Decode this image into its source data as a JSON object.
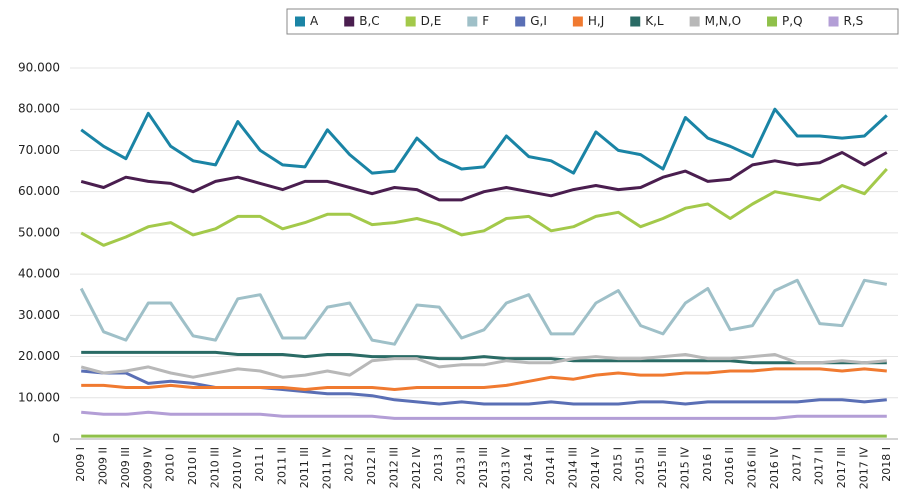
{
  "chart_data": {
    "type": "line",
    "categories": [
      "2009 I",
      "2009 II",
      "2009 III",
      "2009 IV",
      "2010 I",
      "2010 II",
      "2010 III",
      "2010 IV",
      "2011 I",
      "2011 II",
      "2011 III",
      "2011 IV",
      "2012 I",
      "2012 II",
      "2012 III",
      "2012 IV",
      "2013 I",
      "2013 II",
      "2013 III",
      "2013 IV",
      "2014 I",
      "2014 II",
      "2014 III",
      "2014 IV",
      "2015 I",
      "2015 II",
      "2015 III",
      "2015 IV",
      "2016 I",
      "2016 II",
      "2016 III",
      "2016 IV",
      "2017 I",
      "2017 II",
      "2017 III",
      "2017 IV",
      "2018 I"
    ],
    "ylim": [
      0,
      90000
    ],
    "yticks": [
      0,
      {
        "value": 10000,
        "label": "10.000"
      },
      {
        "value": 20000,
        "label": "20.000"
      },
      {
        "value": 30000,
        "label": "30.000"
      },
      {
        "value": 40000,
        "label": "40.000"
      },
      {
        "value": 50000,
        "label": "50.000"
      },
      {
        "value": 60000,
        "label": "60.000"
      },
      {
        "value": 70000,
        "label": "70.000"
      },
      {
        "value": 80000,
        "label": "80.000"
      },
      {
        "value": 90000,
        "label": "90.000"
      }
    ],
    "grid": true,
    "legend": "top-right",
    "series": [
      {
        "name": "A",
        "color": "#1a84a5",
        "values": [
          75000,
          71000,
          68000,
          79000,
          71000,
          67500,
          66500,
          77000,
          70000,
          66500,
          66000,
          75000,
          69000,
          64500,
          65000,
          73000,
          68000,
          65500,
          66000,
          73500,
          68500,
          67500,
          64500,
          74500,
          70000,
          69000,
          65500,
          78000,
          73000,
          71000,
          68500,
          80000,
          73500,
          73500,
          73000,
          73500,
          78500
        ]
      },
      {
        "name": "B,C",
        "color": "#4a1e4f",
        "values": [
          62500,
          61000,
          63500,
          62500,
          62000,
          60000,
          62500,
          63500,
          62000,
          60500,
          62500,
          62500,
          61000,
          59500,
          61000,
          60500,
          58000,
          58000,
          60000,
          61000,
          60000,
          59000,
          60500,
          61500,
          60500,
          61000,
          63500,
          65000,
          62500,
          63000,
          66500,
          67500,
          66500,
          67000,
          69500,
          66500,
          69500
        ]
      },
      {
        "name": "D,E",
        "color": "#a3c94a",
        "values": [
          50000,
          47000,
          49000,
          51500,
          52500,
          49500,
          51000,
          54000,
          54000,
          51000,
          52500,
          54500,
          54500,
          52000,
          52500,
          53500,
          52000,
          49500,
          50500,
          53500,
          54000,
          50500,
          51500,
          54000,
          55000,
          51500,
          53500,
          56000,
          57000,
          53500,
          57000,
          60000,
          59000,
          58000,
          61500,
          59500,
          65500
        ]
      },
      {
        "name": "F",
        "color": "#9fc0c8",
        "values": [
          36500,
          26000,
          24000,
          33000,
          33000,
          25000,
          24000,
          34000,
          35000,
          24500,
          24500,
          32000,
          33000,
          24000,
          23000,
          32500,
          32000,
          24500,
          26500,
          33000,
          35000,
          25500,
          25500,
          33000,
          36000,
          27500,
          25500,
          33000,
          36500,
          26500,
          27500,
          36000,
          38500,
          28000,
          27500,
          38500,
          37500
        ]
      },
      {
        "name": "G,I",
        "color": "#5a6fb5",
        "values": [
          16500,
          16000,
          16000,
          13500,
          14000,
          13500,
          12500,
          12500,
          12500,
          12000,
          11500,
          11000,
          11000,
          10500,
          9500,
          9000,
          8500,
          9000,
          8500,
          8500,
          8500,
          9000,
          8500,
          8500,
          8500,
          9000,
          9000,
          8500,
          9000,
          9000,
          9000,
          9000,
          9000,
          9500,
          9500,
          9000,
          9500
        ]
      },
      {
        "name": "H,J",
        "color": "#f07a30",
        "values": [
          13000,
          13000,
          12500,
          12500,
          13000,
          12500,
          12500,
          12500,
          12500,
          12500,
          12000,
          12500,
          12500,
          12500,
          12000,
          12500,
          12500,
          12500,
          12500,
          13000,
          14000,
          15000,
          14500,
          15500,
          16000,
          15500,
          15500,
          16000,
          16000,
          16500,
          16500,
          17000,
          17000,
          17000,
          16500,
          17000,
          16500
        ]
      },
      {
        "name": "K,L",
        "color": "#2a6b65",
        "values": [
          21000,
          21000,
          21000,
          21000,
          21000,
          21000,
          21000,
          20500,
          20500,
          20500,
          20000,
          20500,
          20500,
          20000,
          20000,
          20000,
          19500,
          19500,
          20000,
          19500,
          19500,
          19500,
          19000,
          19000,
          19000,
          19000,
          19000,
          19000,
          19000,
          19000,
          18500,
          18500,
          18500,
          18500,
          18500,
          18500,
          18500
        ]
      },
      {
        "name": "M,N,O",
        "color": "#b8b8b8",
        "values": [
          17500,
          16000,
          16500,
          17500,
          16000,
          15000,
          16000,
          17000,
          16500,
          15000,
          15500,
          16500,
          15500,
          19000,
          19500,
          19500,
          17500,
          18000,
          18000,
          19000,
          18500,
          18500,
          19500,
          20000,
          19500,
          19500,
          20000,
          20500,
          19500,
          19500,
          20000,
          20500,
          18500,
          18500,
          19000,
          18500,
          19000
        ]
      },
      {
        "name": "P,Q",
        "color": "#8fc04a",
        "values": [
          700,
          700,
          700,
          700,
          700,
          700,
          700,
          700,
          700,
          700,
          700,
          700,
          700,
          700,
          700,
          700,
          700,
          700,
          700,
          700,
          700,
          700,
          700,
          700,
          700,
          700,
          700,
          700,
          700,
          700,
          700,
          700,
          700,
          700,
          700,
          700,
          700
        ]
      },
      {
        "name": "R,S",
        "color": "#b39ed6",
        "values": [
          6500,
          6000,
          6000,
          6500,
          6000,
          6000,
          6000,
          6000,
          6000,
          5500,
          5500,
          5500,
          5500,
          5500,
          5000,
          5000,
          5000,
          5000,
          5000,
          5000,
          5000,
          5000,
          5000,
          5000,
          5000,
          5000,
          5000,
          5000,
          5000,
          5000,
          5000,
          5000,
          5500,
          5500,
          5500,
          5500,
          5500
        ]
      }
    ]
  }
}
